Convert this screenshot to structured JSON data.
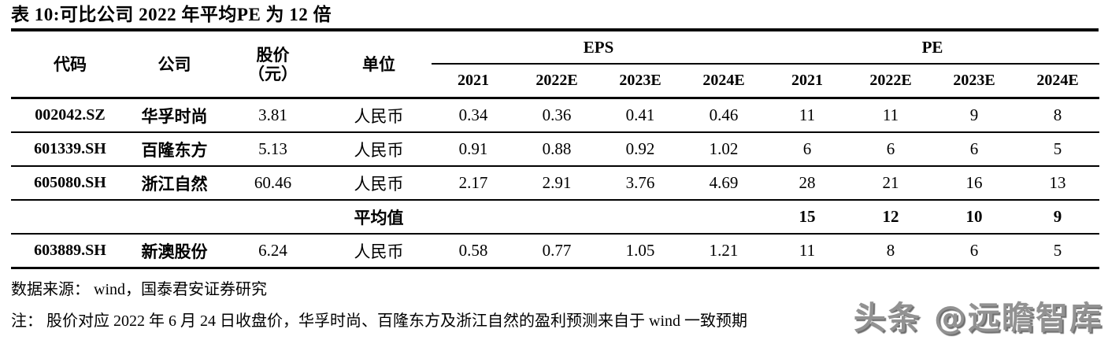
{
  "title": "表 10:可比公司 2022 年平均PE 为 12 倍",
  "table": {
    "headers": {
      "code": "代码",
      "company": "公司",
      "price_line1": "股价",
      "price_line2": "（元）",
      "unit": "单位",
      "eps_group": "EPS",
      "pe_group": "PE",
      "years": [
        "2021",
        "2022E",
        "2023E",
        "2024E"
      ]
    },
    "rows": [
      {
        "code": "002042.SZ",
        "company": "华孚时尚",
        "price": "3.81",
        "unit": "人民币",
        "eps": [
          "0.34",
          "0.36",
          "0.41",
          "0.46"
        ],
        "pe": [
          "11",
          "11",
          "9",
          "8"
        ]
      },
      {
        "code": "601339.SH",
        "company": "百隆东方",
        "price": "5.13",
        "unit": "人民币",
        "eps": [
          "0.91",
          "0.88",
          "0.92",
          "1.02"
        ],
        "pe": [
          "6",
          "6",
          "6",
          "5"
        ]
      },
      {
        "code": "605080.SH",
        "company": "浙江自然",
        "price": "60.46",
        "unit": "人民币",
        "eps": [
          "2.17",
          "2.91",
          "3.76",
          "4.69"
        ],
        "pe": [
          "28",
          "21",
          "16",
          "13"
        ]
      }
    ],
    "average_row": {
      "label": "平均值",
      "pe": [
        "15",
        "12",
        "10",
        "9"
      ]
    },
    "final_row": {
      "code": "603889.SH",
      "company": "新澳股份",
      "price": "6.24",
      "unit": "人民币",
      "eps": [
        "0.58",
        "0.77",
        "1.05",
        "1.21"
      ],
      "pe": [
        "11",
        "8",
        "6",
        "5"
      ]
    }
  },
  "footer": {
    "source": "数据来源： wind，国泰君安证券研究",
    "note": "注： 股价对应 2022 年 6 月 24 日收盘价，华孚时尚、百隆东方及浙江自然的盈利预测来自于 wind 一致预期"
  },
  "watermark": "头条 @远瞻智库",
  "colors": {
    "text": "#000000",
    "rule": "#000000",
    "background": "#ffffff",
    "watermark_gray": "#929292"
  }
}
